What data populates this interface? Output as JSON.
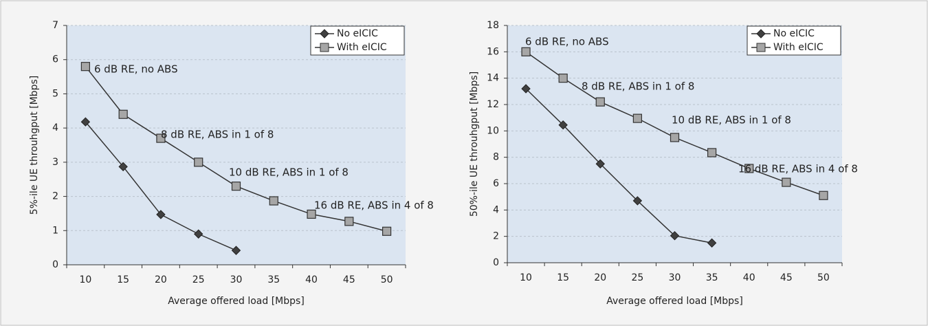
{
  "chart_data": [
    {
      "type": "line",
      "xlabel": "Average offered load [Mbps]",
      "ylabel": "5%-ile UE throuhgput [Mbps]",
      "categories": [
        "10",
        "15",
        "20",
        "25",
        "30",
        "35",
        "40",
        "45",
        "50"
      ],
      "series": [
        {
          "name": "No eICIC",
          "color": "#404040",
          "marker": "diamond",
          "values": [
            4.18,
            2.87,
            1.47,
            0.9,
            0.42,
            null,
            null,
            null,
            null
          ]
        },
        {
          "name": "With eICIC",
          "color": "#a6a6a6",
          "marker": "square",
          "values": [
            5.8,
            4.4,
            3.7,
            3.0,
            2.3,
            1.87,
            1.48,
            1.27,
            0.98
          ]
        }
      ],
      "ylim": [
        0,
        7
      ],
      "yticks": [
        0,
        1,
        2,
        3,
        4,
        5,
        6,
        7
      ],
      "grid": true,
      "legend": "upper right",
      "annotations": [
        "6 dB RE, no ABS",
        "8 dB RE, ABS in 1 of 8",
        "10 dB RE, ABS in 1 of 8",
        "16 dB RE, ABS in 4 of 8"
      ]
    },
    {
      "type": "line",
      "xlabel": "Average offered load [Mbps]",
      "ylabel": "50%-ile UE throuhgput [Mbps]",
      "categories": [
        "10",
        "15",
        "20",
        "25",
        "30",
        "35",
        "40",
        "45",
        "50"
      ],
      "series": [
        {
          "name": "No eICIC",
          "color": "#404040",
          "marker": "diamond",
          "values": [
            13.2,
            10.45,
            7.5,
            4.7,
            2.05,
            1.5,
            null,
            null,
            null
          ]
        },
        {
          "name": "With eICIC",
          "color": "#a6a6a6",
          "marker": "square",
          "values": [
            16,
            14,
            12.2,
            10.95,
            9.5,
            8.35,
            7.15,
            6.1,
            5.1
          ]
        }
      ],
      "ylim": [
        0,
        18
      ],
      "yticks": [
        0,
        2,
        4,
        6,
        8,
        10,
        12,
        14,
        16,
        18
      ],
      "grid": true,
      "legend": "upper right",
      "annotations": [
        "6 dB RE, no ABS",
        "8 dB RE, ABS in 1 of 8",
        "10 dB RE, ABS in 1 of 8",
        "16 dB RE, ABS in 4 of 8"
      ]
    }
  ]
}
